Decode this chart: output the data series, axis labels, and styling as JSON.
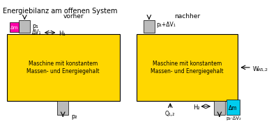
{
  "title": "Energiebilanz am offenen System",
  "bg_color": "#ffffff",
  "yellow": "#FFD700",
  "magenta": "#FF00AA",
  "cyan": "#00CCEE",
  "gray": "#BBBBBB",
  "machine_text_1": "Maschine mit konstantem",
  "machine_text_2": "Massen- und Energiegehalt",
  "vorher_label": "vorher",
  "nachher_label": "nachher",
  "p1_label": "p₁",
  "p2_label": "p₂",
  "delta_m_label": "Δm",
  "delta_V1_label": "ΔV₁",
  "H1_label": "H₁",
  "p1_dv1_label": "p₁+ΔV₁",
  "H2_label": "H₂",
  "Q12_label": "Q₁,₂",
  "p2_dv2_label": "p₂·ΔV₂",
  "W_label": "W",
  "W_sub_label": "W1,2"
}
